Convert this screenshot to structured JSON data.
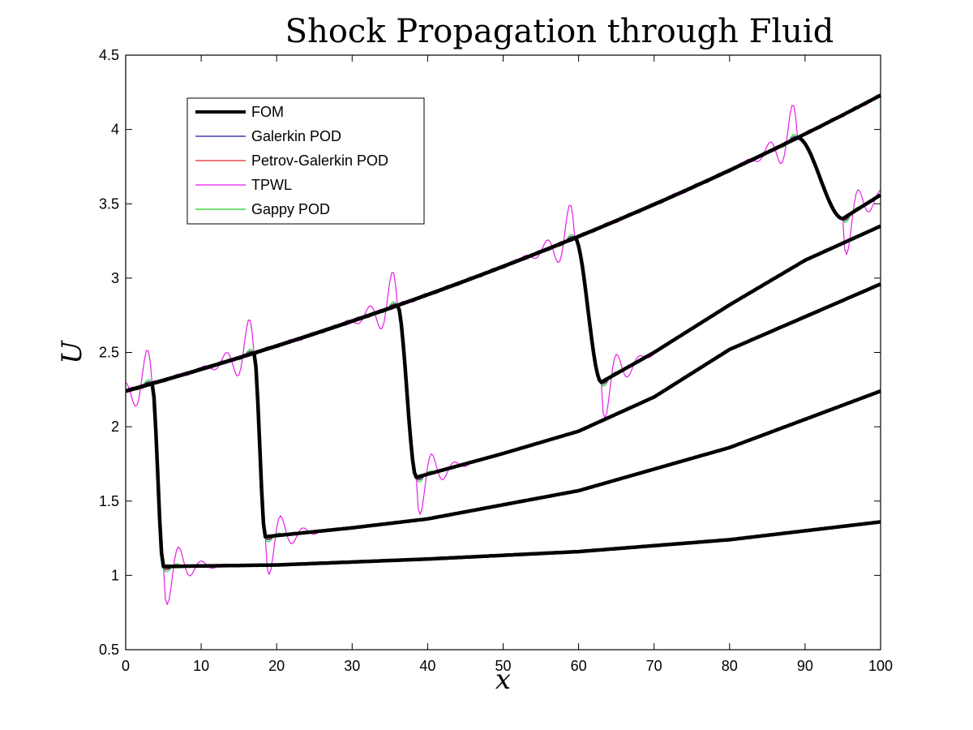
{
  "chart_data": {
    "type": "line",
    "title": "Shock Propagation through Fluid",
    "xlabel": "x",
    "ylabel": "U",
    "xlim": [
      0,
      100
    ],
    "ylim": [
      0.5,
      4.5
    ],
    "xticks": [
      0,
      10,
      20,
      30,
      40,
      50,
      60,
      70,
      80,
      90,
      100
    ],
    "yticks": [
      0.5,
      1,
      1.5,
      2,
      2.5,
      3,
      3.5,
      4,
      4.5
    ],
    "grid": false,
    "legend_position": "top-left",
    "series": [
      {
        "name": "FOM",
        "color": "#000000"
      },
      {
        "name": "Galerkin POD",
        "color": "#1a1aa0"
      },
      {
        "name": "Petrov-Galerkin POD",
        "color": "#e8262a"
      },
      {
        "name": "TPWL",
        "color": "#e61ee6"
      },
      {
        "name": "Gappy POD",
        "color": "#22cc22"
      }
    ],
    "snapshots": [
      {
        "shock_x": 3.5,
        "pre_shock": [
          [
            0,
            2.24
          ],
          [
            3.5,
            2.28
          ]
        ],
        "post_shock": [
          [
            5,
            1.06
          ],
          [
            20,
            1.07
          ],
          [
            40,
            1.11
          ],
          [
            60,
            1.16
          ],
          [
            80,
            1.24
          ],
          [
            100,
            1.36
          ]
        ]
      },
      {
        "shock_x": 17.0,
        "pre_shock": [
          [
            0,
            2.24
          ],
          [
            17,
            2.41
          ]
        ],
        "post_shock": [
          [
            18.5,
            1.26
          ],
          [
            30,
            1.32
          ],
          [
            40,
            1.38
          ],
          [
            60,
            1.57
          ],
          [
            80,
            1.86
          ],
          [
            100,
            2.24
          ]
        ]
      },
      {
        "shock_x": 37.0,
        "pre_shock": [
          [
            0,
            2.24
          ],
          [
            36,
            2.65
          ]
        ],
        "post_shock": [
          [
            38.5,
            1.66
          ],
          [
            50,
            1.82
          ],
          [
            60,
            1.97
          ],
          [
            70,
            2.2
          ],
          [
            80,
            2.52
          ],
          [
            100,
            2.96
          ]
        ]
      },
      {
        "shock_x": 61.0,
        "pre_shock": [
          [
            0,
            2.24
          ],
          [
            59.5,
            3.07
          ]
        ],
        "post_shock": [
          [
            63,
            2.3
          ],
          [
            70,
            2.5
          ],
          [
            80,
            2.82
          ],
          [
            90,
            3.12
          ],
          [
            100,
            3.35
          ]
        ]
      },
      {
        "shock_x": 91.5,
        "pre_shock": [
          [
            0,
            2.24
          ],
          [
            89,
            3.83
          ]
        ],
        "post_shock": [
          [
            95,
            3.4
          ],
          [
            100,
            3.56
          ]
        ]
      },
      {
        "shock_x": null,
        "pre_shock": [
          [
            0,
            2.24
          ],
          [
            100,
            4.22
          ]
        ],
        "post_shock": []
      }
    ]
  }
}
